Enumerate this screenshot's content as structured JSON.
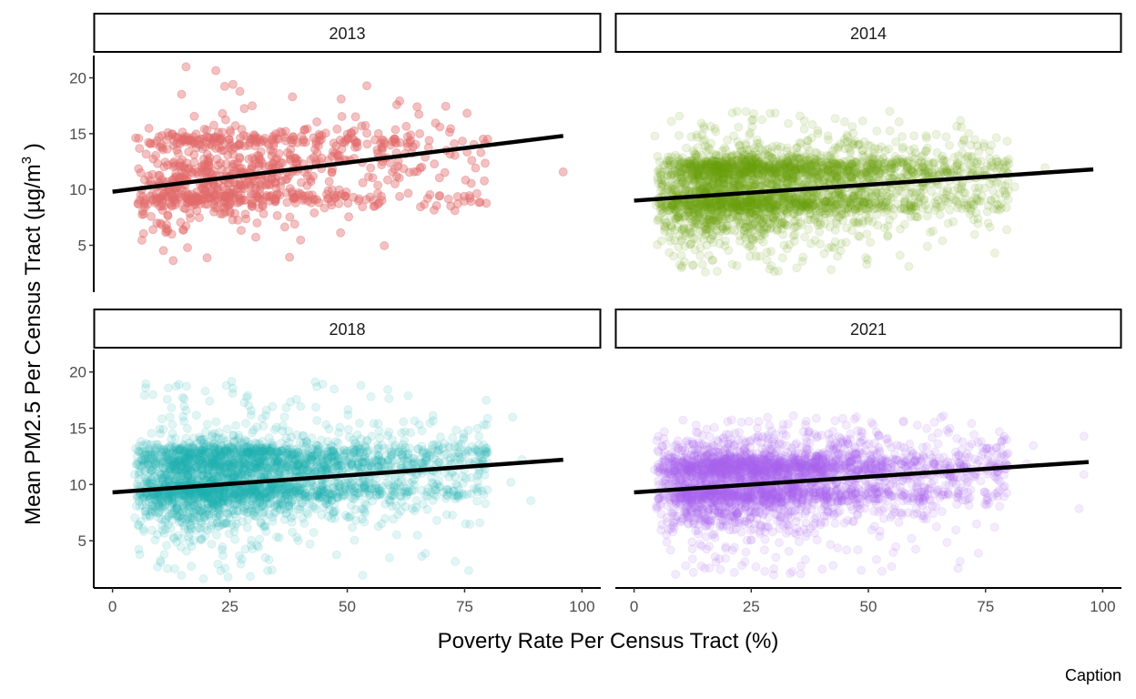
{
  "chart_data": {
    "type": "scatter",
    "xlabel": "Poverty Rate Per Census Tract (%)",
    "ylabel": "Mean PM2.5 Per Census Tract (µg/m",
    "ylabel_superscript": "3",
    "ylabel_suffix": ")",
    "caption": "Caption",
    "xlim": [
      -4,
      104
    ],
    "ylim": [
      0.8,
      22.0
    ],
    "x_ticks": [
      0,
      25,
      50,
      75,
      100
    ],
    "y_ticks": [
      5,
      10,
      15,
      20
    ],
    "grid": false,
    "legend": "none",
    "facets": [
      {
        "label": "2013",
        "color": "#E36B6B",
        "regression": {
          "x0": 0,
          "y0": 9.8,
          "x1": 96,
          "y1": 14.8
        },
        "summary": {
          "n_points_approx": 900,
          "x_range": [
            0,
            96
          ],
          "y_range": [
            3.6,
            21.2
          ],
          "dense_y_bands": [
            14.5,
            9.2
          ]
        }
      },
      {
        "label": "2014",
        "color": "#6FA012",
        "regression": {
          "x0": 0,
          "y0": 9.0,
          "x1": 98,
          "y1": 11.8
        },
        "summary": {
          "n_points_approx": 5000,
          "x_range": [
            0,
            99
          ],
          "y_range": [
            2.6,
            17.0
          ],
          "dense_y_bands": [
            12.3,
            11.6,
            8.6
          ]
        }
      },
      {
        "label": "2018",
        "color": "#1FB3B0",
        "regression": {
          "x0": 0,
          "y0": 9.3,
          "x1": 96,
          "y1": 12.2
        },
        "summary": {
          "n_points_approx": 5000,
          "x_range": [
            0,
            96
          ],
          "y_range": [
            1.6,
            19.6
          ],
          "dense_y_bands": [
            12.9,
            11.9,
            9.3
          ]
        }
      },
      {
        "label": "2021",
        "color": "#A867F2",
        "regression": {
          "x0": 0,
          "y0": 9.3,
          "x1": 97,
          "y1": 12.0
        },
        "summary": {
          "n_points_approx": 5000,
          "x_range": [
            0,
            96
          ],
          "y_range": [
            1.9,
            16.1
          ],
          "dense_y_bands": [
            11.9,
            11.3,
            9.0
          ]
        }
      }
    ]
  }
}
